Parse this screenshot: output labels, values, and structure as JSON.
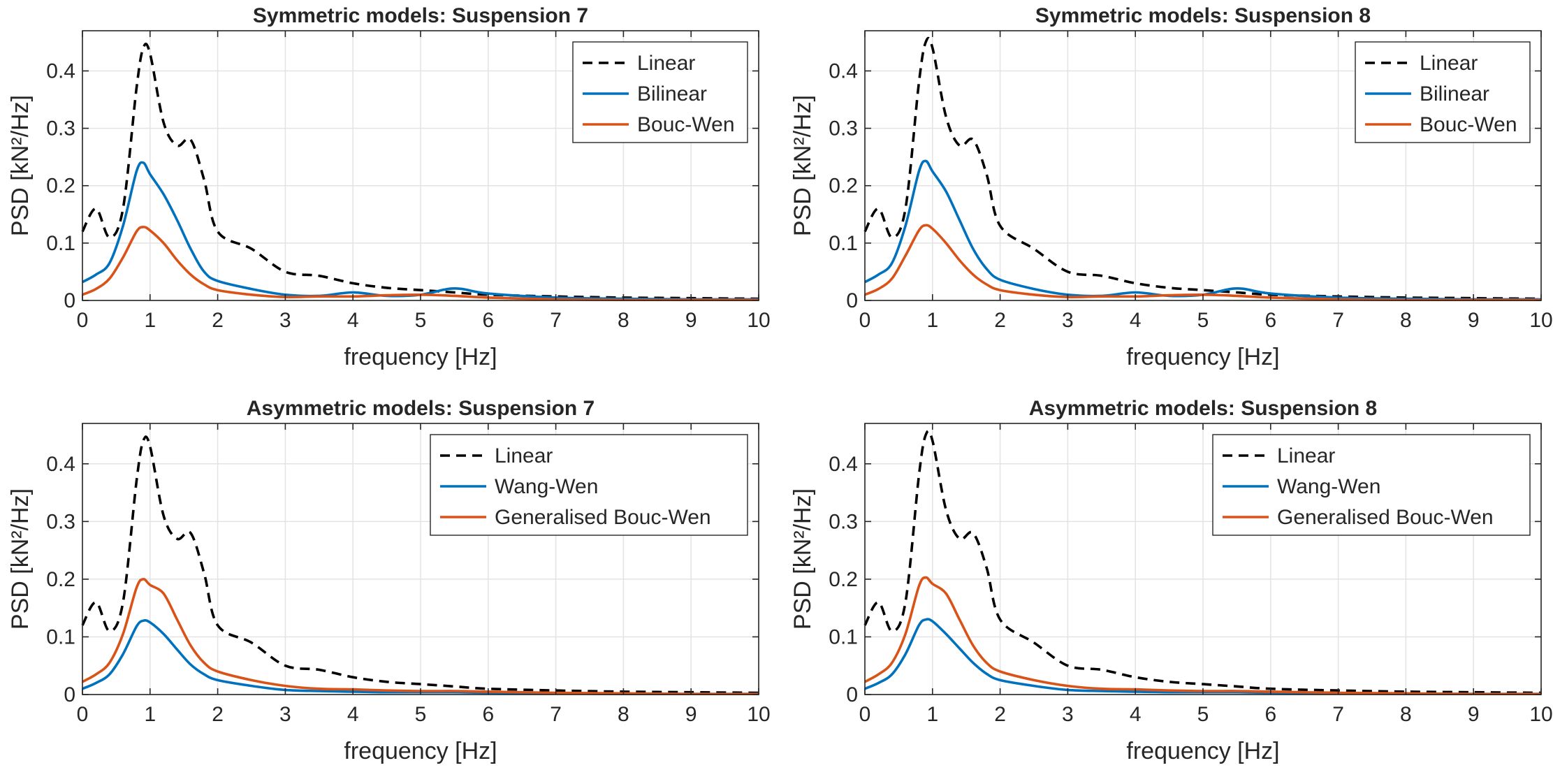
{
  "figure": {
    "colors": {
      "linear": "#000000",
      "blue": "#0072BD",
      "orange": "#D95319",
      "grid": "#e3e3e3",
      "axes": "#262626"
    },
    "panels": [
      {
        "title": "Symmetric models: Suspension 7",
        "xlabel": "frequency [Hz]",
        "ylabel": "PSD [kN²/Hz]"
      },
      {
        "title": "Symmetric models: Suspension 8",
        "xlabel": "frequency [Hz]",
        "ylabel": "PSD [kN²/Hz]"
      },
      {
        "title": "Asymmetric models: Suspension 7",
        "xlabel": "frequency [Hz]",
        "ylabel": "PSD [kN²/Hz]"
      },
      {
        "title": "Asymmetric models: Suspension 8",
        "xlabel": "frequency [Hz]",
        "ylabel": "PSD [kN²/Hz]"
      }
    ]
  },
  "chart_data": [
    {
      "type": "line",
      "title": "Symmetric models: Suspension 7",
      "xlabel": "frequency [Hz]",
      "ylabel": "PSD [kN²/Hz]",
      "xlim": [
        0,
        10
      ],
      "ylim": [
        0,
        0.47
      ],
      "xticks": [
        "0",
        "1",
        "2",
        "3",
        "4",
        "5",
        "6",
        "7",
        "8",
        "9",
        "10"
      ],
      "yticks": [
        "0",
        "0.1",
        "0.2",
        "0.3",
        "0.4"
      ],
      "grid": true,
      "legend": "top-right",
      "x": [
        0,
        0.2,
        0.4,
        0.6,
        0.8,
        0.9,
        1.0,
        1.2,
        1.4,
        1.6,
        1.8,
        2.0,
        2.5,
        3.0,
        3.5,
        4.0,
        4.5,
        5.0,
        5.5,
        6.0,
        7.0,
        8.0,
        9.0,
        10.0
      ],
      "series": [
        {
          "name": "Linear",
          "style": "dashed",
          "color": "#000000",
          "values": [
            0.12,
            0.16,
            0.11,
            0.16,
            0.37,
            0.44,
            0.43,
            0.31,
            0.27,
            0.28,
            0.21,
            0.12,
            0.09,
            0.05,
            0.043,
            0.03,
            0.022,
            0.018,
            0.014,
            0.01,
            0.007,
            0.005,
            0.004,
            0.003
          ]
        },
        {
          "name": "Bilinear",
          "style": "solid",
          "color": "#0072BD",
          "values": [
            0.032,
            0.045,
            0.065,
            0.13,
            0.225,
            0.24,
            0.22,
            0.185,
            0.14,
            0.09,
            0.05,
            0.034,
            0.02,
            0.01,
            0.008,
            0.014,
            0.008,
            0.01,
            0.021,
            0.012,
            0.005,
            0.003,
            0.002,
            0.002
          ]
        },
        {
          "name": "Bouc-Wen",
          "style": "solid",
          "color": "#D95319",
          "values": [
            0.01,
            0.02,
            0.038,
            0.075,
            0.12,
            0.128,
            0.122,
            0.1,
            0.07,
            0.045,
            0.028,
            0.018,
            0.01,
            0.006,
            0.007,
            0.007,
            0.009,
            0.01,
            0.008,
            0.005,
            0.002,
            0.001,
            0.001,
            0.001
          ]
        }
      ]
    },
    {
      "type": "line",
      "title": "Symmetric models: Suspension 8",
      "xlabel": "frequency [Hz]",
      "ylabel": "PSD [kN²/Hz]",
      "xlim": [
        0,
        10
      ],
      "ylim": [
        0,
        0.47
      ],
      "xticks": [
        "0",
        "1",
        "2",
        "3",
        "4",
        "5",
        "6",
        "7",
        "8",
        "9",
        "10"
      ],
      "yticks": [
        "0",
        "0.1",
        "0.2",
        "0.3",
        "0.4"
      ],
      "grid": true,
      "legend": "top-right",
      "x": [
        0,
        0.2,
        0.4,
        0.6,
        0.8,
        0.9,
        1.0,
        1.2,
        1.4,
        1.6,
        1.8,
        2.0,
        2.5,
        3.0,
        3.5,
        4.0,
        4.5,
        5.0,
        5.5,
        6.0,
        7.0,
        8.0,
        9.0,
        10.0
      ],
      "series": [
        {
          "name": "Linear",
          "style": "dashed",
          "color": "#000000",
          "values": [
            0.12,
            0.16,
            0.11,
            0.16,
            0.38,
            0.45,
            0.44,
            0.32,
            0.27,
            0.28,
            0.22,
            0.13,
            0.09,
            0.05,
            0.043,
            0.03,
            0.022,
            0.018,
            0.014,
            0.01,
            0.007,
            0.005,
            0.004,
            0.003
          ]
        },
        {
          "name": "Bilinear",
          "style": "solid",
          "color": "#0072BD",
          "values": [
            0.032,
            0.045,
            0.065,
            0.13,
            0.225,
            0.243,
            0.225,
            0.19,
            0.14,
            0.09,
            0.055,
            0.036,
            0.02,
            0.01,
            0.008,
            0.014,
            0.008,
            0.01,
            0.021,
            0.012,
            0.005,
            0.003,
            0.002,
            0.002
          ]
        },
        {
          "name": "Bouc-Wen",
          "style": "solid",
          "color": "#D95319",
          "values": [
            0.01,
            0.02,
            0.038,
            0.078,
            0.122,
            0.131,
            0.125,
            0.1,
            0.07,
            0.045,
            0.028,
            0.018,
            0.01,
            0.006,
            0.007,
            0.007,
            0.009,
            0.01,
            0.008,
            0.005,
            0.002,
            0.001,
            0.001,
            0.001
          ]
        }
      ]
    },
    {
      "type": "line",
      "title": "Asymmetric models: Suspension 7",
      "xlabel": "frequency [Hz]",
      "ylabel": "PSD [kN²/Hz]",
      "xlim": [
        0,
        10
      ],
      "ylim": [
        0,
        0.47
      ],
      "xticks": [
        "0",
        "1",
        "2",
        "3",
        "4",
        "5",
        "6",
        "7",
        "8",
        "9",
        "10"
      ],
      "yticks": [
        "0",
        "0.1",
        "0.2",
        "0.3",
        "0.4"
      ],
      "grid": true,
      "legend": "top-right",
      "x": [
        0,
        0.2,
        0.4,
        0.6,
        0.8,
        0.9,
        1.0,
        1.2,
        1.4,
        1.6,
        1.8,
        2.0,
        2.5,
        3.0,
        3.5,
        4.0,
        4.5,
        5.0,
        5.5,
        6.0,
        7.0,
        8.0,
        9.0,
        10.0
      ],
      "series": [
        {
          "name": "Linear",
          "style": "dashed",
          "color": "#000000",
          "values": [
            0.12,
            0.16,
            0.11,
            0.16,
            0.37,
            0.44,
            0.43,
            0.31,
            0.27,
            0.28,
            0.21,
            0.12,
            0.09,
            0.05,
            0.043,
            0.03,
            0.022,
            0.018,
            0.014,
            0.01,
            0.007,
            0.005,
            0.004,
            0.003
          ]
        },
        {
          "name": "Wang-Wen",
          "style": "solid",
          "color": "#0072BD",
          "values": [
            0.01,
            0.02,
            0.035,
            0.07,
            0.118,
            0.128,
            0.125,
            0.105,
            0.078,
            0.052,
            0.035,
            0.025,
            0.015,
            0.008,
            0.006,
            0.005,
            0.004,
            0.004,
            0.004,
            0.003,
            0.002,
            0.001,
            0.001,
            0.001
          ]
        },
        {
          "name": "Generalised Bouc-Wen",
          "style": "solid",
          "color": "#D95319",
          "values": [
            0.022,
            0.035,
            0.055,
            0.105,
            0.185,
            0.2,
            0.19,
            0.175,
            0.13,
            0.085,
            0.055,
            0.04,
            0.025,
            0.015,
            0.01,
            0.009,
            0.007,
            0.006,
            0.006,
            0.005,
            0.003,
            0.002,
            0.001,
            0.001
          ]
        }
      ]
    },
    {
      "type": "line",
      "title": "Asymmetric models: Suspension 8",
      "xlabel": "frequency [Hz]",
      "ylabel": "PSD [kN²/Hz]",
      "xlim": [
        0,
        10
      ],
      "ylim": [
        0,
        0.47
      ],
      "xticks": [
        "0",
        "1",
        "2",
        "3",
        "4",
        "5",
        "6",
        "7",
        "8",
        "9",
        "10"
      ],
      "yticks": [
        "0",
        "0.1",
        "0.2",
        "0.3",
        "0.4"
      ],
      "grid": true,
      "legend": "top-right",
      "x": [
        0,
        0.2,
        0.4,
        0.6,
        0.8,
        0.9,
        1.0,
        1.2,
        1.4,
        1.6,
        1.8,
        2.0,
        2.5,
        3.0,
        3.5,
        4.0,
        4.5,
        5.0,
        5.5,
        6.0,
        7.0,
        8.0,
        9.0,
        10.0
      ],
      "series": [
        {
          "name": "Linear",
          "style": "dashed",
          "color": "#000000",
          "values": [
            0.12,
            0.16,
            0.11,
            0.16,
            0.38,
            0.45,
            0.44,
            0.32,
            0.27,
            0.28,
            0.22,
            0.13,
            0.09,
            0.05,
            0.043,
            0.03,
            0.022,
            0.018,
            0.014,
            0.01,
            0.007,
            0.005,
            0.004,
            0.003
          ]
        },
        {
          "name": "Wang-Wen",
          "style": "solid",
          "color": "#0072BD",
          "values": [
            0.01,
            0.02,
            0.035,
            0.07,
            0.12,
            0.13,
            0.127,
            0.105,
            0.08,
            0.055,
            0.036,
            0.025,
            0.015,
            0.008,
            0.006,
            0.005,
            0.004,
            0.004,
            0.004,
            0.003,
            0.002,
            0.001,
            0.001,
            0.001
          ]
        },
        {
          "name": "Generalised Bouc-Wen",
          "style": "solid",
          "color": "#D95319",
          "values": [
            0.022,
            0.035,
            0.055,
            0.105,
            0.188,
            0.203,
            0.192,
            0.175,
            0.13,
            0.085,
            0.055,
            0.04,
            0.025,
            0.015,
            0.01,
            0.009,
            0.007,
            0.006,
            0.006,
            0.005,
            0.003,
            0.002,
            0.001,
            0.001
          ]
        }
      ]
    }
  ]
}
